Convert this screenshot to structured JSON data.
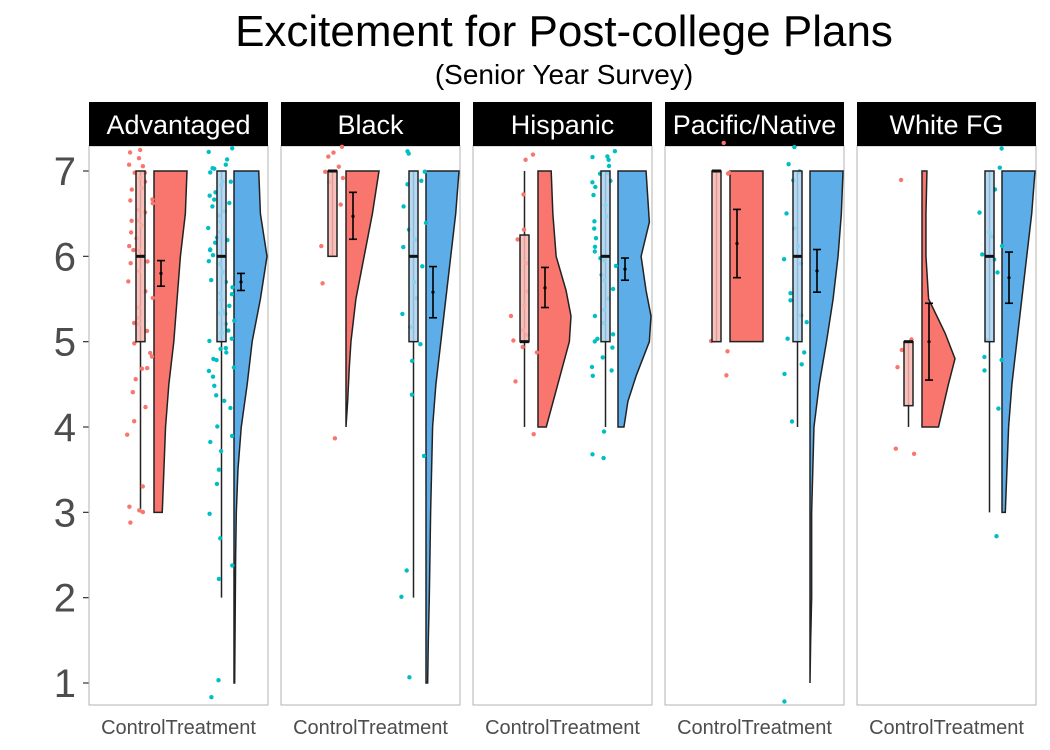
{
  "chart_data": {
    "type": "raincloud",
    "title": "Excitement for Post-college Plans",
    "subtitle": "(Senior Year Survey)",
    "xlabel": "",
    "ylabel": "",
    "ylim": [
      0.8,
      7.3
    ],
    "y_ticks": [
      1,
      2,
      3,
      4,
      5,
      6,
      7
    ],
    "x_categories": [
      "Control",
      "Treatment"
    ],
    "grid": false,
    "colors": {
      "control": "#F8766D",
      "treatment": "#00BFC4",
      "control_fill": "#F8766D",
      "treatment_fill": "#5DADE8",
      "control_box_fill": "#F9B6B0",
      "treatment_box_fill": "#A9D3F2",
      "strip_bg": "#000000"
    },
    "panels": [
      {
        "name": "Advantaged",
        "groups": [
          {
            "group": "Control",
            "box": {
              "min": 3,
              "q1": 5,
              "median": 6,
              "q3": 7,
              "max": 7
            },
            "mean": 5.8,
            "ci": [
              5.65,
              5.95
            ],
            "density_range": [
              3,
              7
            ],
            "density": [
              [
                3,
                0.25
              ],
              [
                3.5,
                0.3
              ],
              [
                4,
                0.35
              ],
              [
                4.5,
                0.45
              ],
              [
                5,
                0.6
              ],
              [
                5.5,
                0.7
              ],
              [
                6,
                0.8
              ],
              [
                6.5,
                0.95
              ],
              [
                7,
                1.0
              ]
            ],
            "points": [
              7.25,
              7.2,
              7.15,
              7.1,
              7.05,
              7.0,
              6.95,
              6.9,
              6.85,
              6.8,
              6.75,
              6.7,
              6.65,
              6.6,
              6.55,
              6.5,
              6.45,
              6.4,
              6.35,
              6.3,
              6.2,
              6.15,
              6.1,
              6.05,
              6.0,
              5.95,
              5.9,
              5.8,
              5.7,
              5.6,
              5.5,
              5.4,
              5.3,
              5.2,
              5.2,
              5.1,
              5.0,
              4.9,
              4.85,
              4.7,
              4.65,
              4.55,
              4.4,
              4.25,
              4.1,
              3.9,
              3.3,
              3.1,
              3.05,
              3.0,
              2.9
            ]
          },
          {
            "group": "Treatment",
            "box": {
              "min": 2,
              "q1": 5,
              "median": 6,
              "q3": 7,
              "max": 7
            },
            "mean": 5.7,
            "ci": [
              5.6,
              5.8
            ],
            "density_range": [
              1,
              7
            ],
            "density": [
              [
                1,
                0.02
              ],
              [
                1.5,
                0.03
              ],
              [
                2,
                0.04
              ],
              [
                2.5,
                0.05
              ],
              [
                3,
                0.07
              ],
              [
                3.5,
                0.12
              ],
              [
                4,
                0.22
              ],
              [
                4.5,
                0.4
              ],
              [
                5,
                0.55
              ],
              [
                5.5,
                0.8
              ],
              [
                6,
                1.0
              ],
              [
                6.5,
                0.8
              ],
              [
                7,
                0.75
              ]
            ],
            "points": [
              7.25,
              7.2,
              7.15,
              7.1,
              7.05,
              7.0,
              6.95,
              6.9,
              6.85,
              6.8,
              6.75,
              6.7,
              6.65,
              6.6,
              6.55,
              6.5,
              6.45,
              6.4,
              6.35,
              6.3,
              6.25,
              6.2,
              6.15,
              6.1,
              6.05,
              6.0,
              5.95,
              5.9,
              5.85,
              5.8,
              5.75,
              5.7,
              5.65,
              5.6,
              5.55,
              5.5,
              5.45,
              5.4,
              5.35,
              5.3,
              5.25,
              5.2,
              5.15,
              5.1,
              5.05,
              5.0,
              4.95,
              4.9,
              4.85,
              4.8,
              4.75,
              4.7,
              4.65,
              4.6,
              4.5,
              4.4,
              4.3,
              4.2,
              4.0,
              3.9,
              3.8,
              3.7,
              3.5,
              3.3,
              3.0,
              2.7,
              2.35,
              2.2,
              1.0,
              0.85
            ]
          }
        ]
      },
      {
        "name": "Black",
        "groups": [
          {
            "group": "Control",
            "box": {
              "min": 6,
              "q1": 6,
              "median": 7,
              "q3": 7,
              "max": 7
            },
            "mean": 6.47,
            "ci": [
              6.2,
              6.75
            ],
            "density_range": [
              4,
              7
            ],
            "density": [
              [
                4,
                0.0
              ],
              [
                4.3,
                0.05
              ],
              [
                4.7,
                0.1
              ],
              [
                5.0,
                0.15
              ],
              [
                5.5,
                0.3
              ],
              [
                6,
                0.55
              ],
              [
                6.5,
                0.8
              ],
              [
                7,
                1.0
              ]
            ],
            "points": [
              7.25,
              7.2,
              7.15,
              7.05,
              7.0,
              6.95,
              6.9,
              6.6,
              6.1,
              5.7,
              3.9
            ]
          },
          {
            "group": "Treatment",
            "box": {
              "min": 2,
              "q1": 5,
              "median": 6,
              "q3": 7,
              "max": 7
            },
            "mean": 5.58,
            "ci": [
              5.28,
              5.88
            ],
            "density_range": [
              1,
              7
            ],
            "density": [
              [
                1,
                0.05
              ],
              [
                1.5,
                0.07
              ],
              [
                2,
                0.1
              ],
              [
                3,
                0.14
              ],
              [
                4,
                0.2
              ],
              [
                4.5,
                0.3
              ],
              [
                5,
                0.45
              ],
              [
                5.5,
                0.6
              ],
              [
                6,
                0.75
              ],
              [
                6.5,
                0.9
              ],
              [
                7,
                1.0
              ]
            ],
            "points": [
              7.22,
              7.18,
              7.0,
              6.9,
              6.85,
              6.6,
              6.4,
              6.3,
              6.2,
              6.1,
              5.9,
              5.7,
              5.5,
              5.3,
              5.2,
              5.0,
              4.8,
              4.35,
              3.65,
              2.3,
              2.0,
              1.1
            ]
          }
        ]
      },
      {
        "name": "Hispanic",
        "groups": [
          {
            "group": "Control",
            "box": {
              "min": 4,
              "q1": 5,
              "median": 5,
              "q3": 6.25,
              "max": 7
            },
            "mean": 5.63,
            "ci": [
              5.4,
              5.87
            ],
            "density_range": [
              4,
              7
            ],
            "density": [
              [
                4,
                0.25
              ],
              [
                4.5,
                0.6
              ],
              [
                5,
                0.95
              ],
              [
                5.3,
                1.0
              ],
              [
                5.6,
                0.85
              ],
              [
                6,
                0.55
              ],
              [
                6.5,
                0.45
              ],
              [
                7,
                0.4
              ]
            ],
            "points": [
              7.2,
              7.1,
              6.7,
              6.3,
              6.2,
              5.9,
              5.6,
              5.4,
              5.3,
              5.1,
              5.05,
              5.0,
              4.95,
              4.9,
              4.5,
              3.95
            ]
          },
          {
            "group": "Treatment",
            "box": {
              "min": 4,
              "q1": 5,
              "median": 6,
              "q3": 7,
              "max": 7
            },
            "mean": 5.85,
            "ci": [
              5.72,
              5.98
            ],
            "density_range": [
              4,
              7
            ],
            "density": [
              [
                4,
                0.18
              ],
              [
                4.3,
                0.3
              ],
              [
                4.6,
                0.55
              ],
              [
                5,
                0.95
              ],
              [
                5.3,
                1.0
              ],
              [
                5.6,
                0.85
              ],
              [
                6,
                0.7
              ],
              [
                6.4,
                0.95
              ],
              [
                6.7,
                0.9
              ],
              [
                7,
                0.85
              ]
            ],
            "points": [
              7.25,
              7.2,
              7.15,
              7.1,
              7.05,
              7.0,
              6.95,
              6.9,
              6.85,
              6.8,
              6.7,
              6.6,
              6.5,
              6.4,
              6.3,
              6.2,
              6.1,
              6.05,
              6.0,
              5.95,
              5.9,
              5.8,
              5.7,
              5.6,
              5.5,
              5.4,
              5.3,
              5.2,
              5.1,
              5.05,
              5.0,
              4.9,
              4.8,
              4.7,
              4.65,
              4.6,
              3.95,
              3.7,
              3.65
            ]
          }
        ]
      },
      {
        "name": "Pacific/Native",
        "groups": [
          {
            "group": "Control",
            "box": {
              "min": 5,
              "q1": 5,
              "median": 7,
              "q3": 7,
              "max": 7
            },
            "mean": 6.15,
            "ci": [
              5.75,
              6.55
            ],
            "density_range": [
              5,
              7
            ],
            "density": [
              [
                5,
                1.0
              ],
              [
                5.5,
                1.0
              ],
              [
                6,
                1.0
              ],
              [
                6.5,
                1.0
              ],
              [
                7,
                1.0
              ]
            ],
            "points": [
              7.3,
              7.0,
              6.95,
              5.0,
              4.9,
              4.6
            ]
          },
          {
            "group": "Treatment",
            "box": {
              "min": 4,
              "q1": 5,
              "median": 6,
              "q3": 7,
              "max": 7
            },
            "mean": 5.83,
            "ci": [
              5.58,
              6.08
            ],
            "density_range": [
              1,
              7
            ],
            "density": [
              [
                1,
                0.0
              ],
              [
                1.5,
                0.02
              ],
              [
                2,
                0.05
              ],
              [
                3,
                0.05
              ],
              [
                4,
                0.12
              ],
              [
                4.5,
                0.28
              ],
              [
                5,
                0.5
              ],
              [
                5.5,
                0.7
              ],
              [
                6,
                0.85
              ],
              [
                6.5,
                0.95
              ],
              [
                7,
                1.0
              ]
            ],
            "points": [
              7.3,
              7.1,
              7.0,
              6.9,
              6.5,
              6.3,
              6.1,
              6.0,
              5.9,
              5.6,
              5.5,
              5.3,
              5.2,
              5.0,
              4.9,
              4.7,
              4.6,
              4.1,
              0.75
            ]
          }
        ]
      },
      {
        "name": "White FG",
        "groups": [
          {
            "group": "Control",
            "box": {
              "min": 4,
              "q1": 4.25,
              "median": 5,
              "q3": 5,
              "max": 5
            },
            "mean": 5.0,
            "ci": [
              4.55,
              5.45
            ],
            "density_range": [
              4,
              7
            ],
            "density": [
              [
                4,
                0.5
              ],
              [
                4.5,
                0.8
              ],
              [
                4.8,
                1.0
              ],
              [
                5.1,
                0.7
              ],
              [
                5.5,
                0.2
              ],
              [
                6,
                0.12
              ],
              [
                6.5,
                0.12
              ],
              [
                7,
                0.15
              ]
            ],
            "points": [
              6.9,
              5.0,
              4.9,
              4.7,
              3.75,
              3.7
            ]
          },
          {
            "group": "Treatment",
            "box": {
              "min": 3,
              "q1": 5,
              "median": 6,
              "q3": 7,
              "max": 7
            },
            "mean": 5.75,
            "ci": [
              5.45,
              6.05
            ],
            "density_range": [
              3,
              7
            ],
            "density": [
              [
                3,
                0.1
              ],
              [
                3.5,
                0.15
              ],
              [
                4,
                0.2
              ],
              [
                4.5,
                0.3
              ],
              [
                5,
                0.45
              ],
              [
                5.5,
                0.6
              ],
              [
                6,
                0.75
              ],
              [
                6.5,
                0.9
              ],
              [
                7,
                1.0
              ]
            ],
            "points": [
              7.25,
              7.05,
              6.75,
              6.5,
              6.3,
              6.25,
              6.15,
              6.0,
              5.95,
              5.8,
              5.0,
              4.85,
              4.75,
              4.65,
              4.25,
              2.7
            ]
          }
        ]
      }
    ]
  }
}
